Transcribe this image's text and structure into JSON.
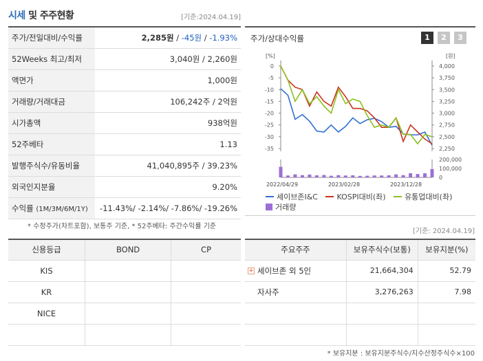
{
  "header": {
    "title_a": "시세",
    "title_b": " 및 주주현황",
    "date": "[기준:2024.04.19]"
  },
  "quote": {
    "price_label": "주가/전일대비/수익률",
    "price": "2,285원",
    "change": "-45원",
    "change_pct": "-1.93%",
    "week52_label": "52Weeks 최고/최저",
    "week52_value": "3,040원 / 2,260원",
    "par_label": "액면가",
    "par_value": "1,000원",
    "volume_label": "거래량/거래대금",
    "volume_value": "106,242주 / 2억원",
    "mcap_label": "시가총액",
    "mcap_value": "938억원",
    "beta_label": "52주베타",
    "beta_value": "1.13",
    "shares_label": "발행주식수/유동비율",
    "shares_value": "41,040,895주 / 39.23%",
    "foreign_label": "외국인지분율",
    "foreign_value": "9.20%",
    "return_label": "수익률",
    "return_periods": "(1M/3M/6M/1Y)",
    "return_value": "-11.43%/ -2.14%/ -7.86%/ -19.26%",
    "note": "* 수정주가(차트포함), 보통주 기준, * 52주베타: 주간수익률 기준"
  },
  "chart_panel": {
    "title": "주가/상대수익률",
    "tabs": [
      "1",
      "2",
      "3"
    ],
    "legend": {
      "s1": "세이브존I&C",
      "s2": "KOSPI대비(좌)",
      "s3": "유통업대비(좌)",
      "s4": "거래량"
    }
  },
  "chart_data": {
    "type": "line",
    "left_axis_unit": "[%]",
    "right_axis_unit": "[원]",
    "left_ticks": [
      "0",
      "-5",
      "-10",
      "-15",
      "-20",
      "-25",
      "-30",
      "-35"
    ],
    "right_ticks": [
      "4,000",
      "3,750",
      "3,500",
      "3,250",
      "3,000",
      "2,750",
      "2,500",
      "2,250"
    ],
    "volume_ticks": [
      "200,000",
      "100,000",
      "0"
    ],
    "x_labels": [
      "2022/04/29",
      "2023/02/28",
      "2023/12/28"
    ],
    "left_range": [
      -35,
      0
    ],
    "right_range": [
      2250,
      4000
    ],
    "volume_range": [
      0,
      200000
    ],
    "series": [
      {
        "name": "세이브존I&C",
        "color": "#2f6fd6",
        "axis": "right",
        "values": [
          3520,
          3380,
          2870,
          2970,
          2830,
          2620,
          2600,
          2750,
          2600,
          2720,
          2900,
          2780,
          2860,
          2890,
          2820,
          2700,
          2720,
          2560,
          2540,
          2540,
          2600,
          2320
        ]
      },
      {
        "name": "KOSPI대비(좌)",
        "color": "#c8321e",
        "axis": "left",
        "values": [
          0,
          -6,
          -9,
          -10,
          -17,
          -11,
          -15,
          -17,
          -9,
          -13,
          -18,
          -18,
          -19,
          -22,
          -26,
          -26,
          -22,
          -32,
          -25,
          -28,
          -31,
          -33
        ]
      },
      {
        "name": "유통업대비(좌)",
        "color": "#8cbf1f",
        "axis": "left",
        "values": [
          0,
          -6,
          -15,
          -10,
          -16,
          -13,
          -17,
          -20,
          -10,
          -16,
          -14,
          -15,
          -21,
          -26,
          -25,
          -26,
          -22,
          -29,
          -29,
          -33,
          -29,
          -30
        ]
      }
    ],
    "volume": [
      140000,
      25000,
      40000,
      30000,
      38000,
      28000,
      32000,
      22000,
      30000,
      25000,
      28000,
      20000,
      22000,
      26000,
      25000,
      28000,
      40000,
      30000,
      55000,
      45000,
      55000,
      110000
    ]
  },
  "chart_date": "[기준: 2024.04.19]",
  "credit": {
    "headers": [
      "신용등급",
      "BOND",
      "CP"
    ],
    "rows": [
      [
        "KIS",
        "",
        ""
      ],
      [
        "KR",
        "",
        ""
      ],
      [
        "NICE",
        "",
        ""
      ],
      [
        "",
        "",
        ""
      ]
    ]
  },
  "holders": {
    "headers": [
      "주요주주",
      "보유주식수(보통)",
      "보유지분(%)"
    ],
    "rows": [
      {
        "name": "세이브존 외 5인",
        "shares": "21,664,304",
        "pct": "52.79"
      },
      {
        "name": "자사주",
        "shares": "3,276,263",
        "pct": "7.98"
      }
    ],
    "note": "* 보유지분 : 보유지분주식수/지수산정주식수×100"
  }
}
